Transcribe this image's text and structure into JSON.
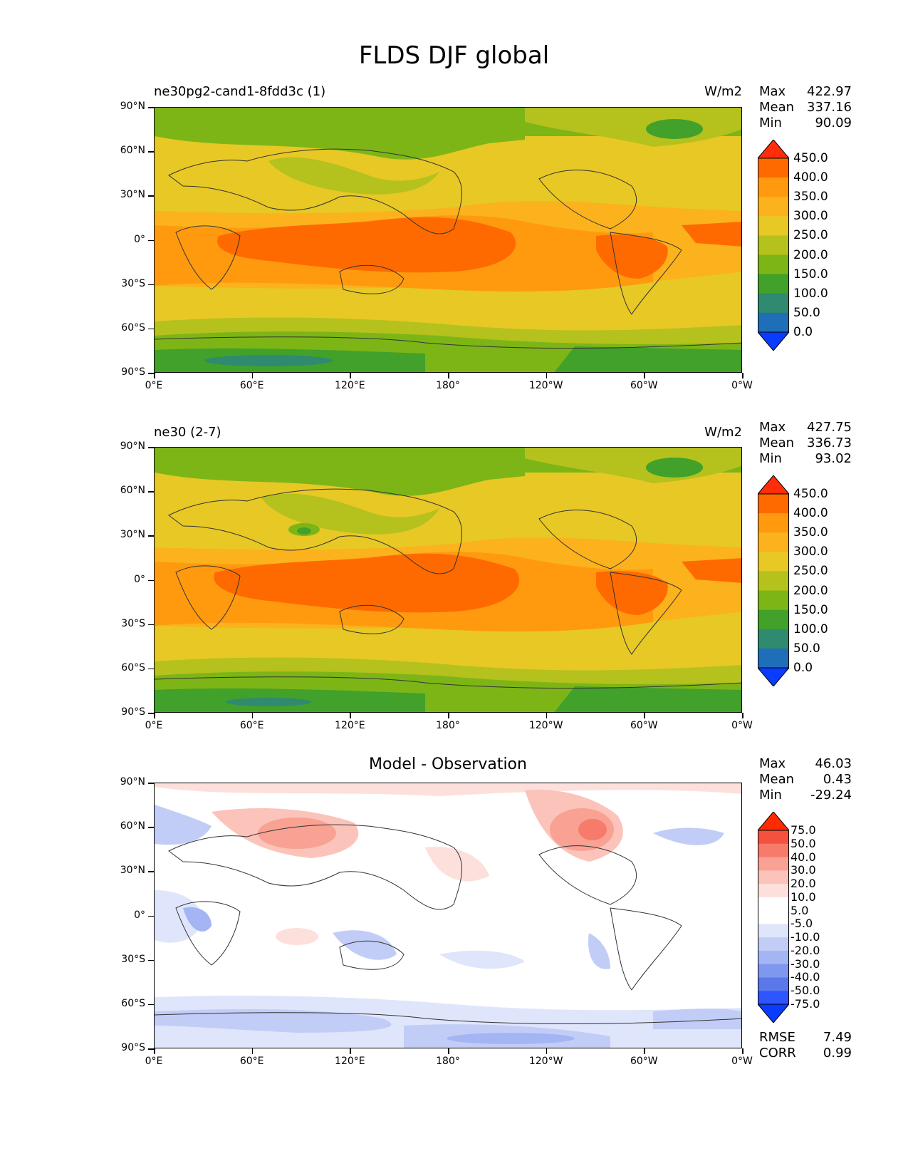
{
  "figure": {
    "title": "FLDS DJF global"
  },
  "axes": {
    "y_labels": [
      "90°N",
      "60°N",
      "30°N",
      "0°",
      "30°S",
      "60°S",
      "90°S"
    ],
    "x_labels": [
      "0°E",
      "60°E",
      "120°E",
      "180°",
      "120°W",
      "60°W",
      "0°W"
    ]
  },
  "panels": [
    {
      "name": "test",
      "left_title": "ne30pg2-cand1-8fdd3c (1)",
      "right_title": "W/m2",
      "stats": {
        "max_label": "Max",
        "max": "422.97",
        "mean_label": "Mean",
        "mean": "337.16",
        "min_label": "Min",
        "min": "90.09"
      },
      "colorbar_labels": [
        "450.0",
        "400.0",
        "350.0",
        "300.0",
        "250.0",
        "200.0",
        "150.0",
        "100.0",
        "50.0",
        "0.0"
      ]
    },
    {
      "name": "reference",
      "left_title": "ne30 (2-7)",
      "right_title": "W/m2",
      "stats": {
        "max_label": "Max",
        "max": "427.75",
        "mean_label": "Mean",
        "mean": "336.73",
        "min_label": "Min",
        "min": "93.02"
      },
      "colorbar_labels": [
        "450.0",
        "400.0",
        "350.0",
        "300.0",
        "250.0",
        "200.0",
        "150.0",
        "100.0",
        "50.0",
        "0.0"
      ]
    },
    {
      "name": "difference",
      "center_title": "Model - Observation",
      "stats": {
        "max_label": "Max",
        "max": "46.03",
        "mean_label": "Mean",
        "mean": "0.43",
        "min_label": "Min",
        "min": "-29.24"
      },
      "colorbar_labels": [
        "75.0",
        "50.0",
        "40.0",
        "30.0",
        "20.0",
        "10.0",
        "5.0",
        "-5.0",
        "-10.0",
        "-20.0",
        "-30.0",
        "-40.0",
        "-50.0",
        "-75.0"
      ],
      "rmse_label": "RMSE",
      "rmse": "7.49",
      "corr_label": "CORR",
      "corr": "0.99"
    }
  ],
  "colors": {
    "field_levels": [
      "#ff2d0a",
      "#ff6a00",
      "#ff9a0e",
      "#fbb21c",
      "#e7c825",
      "#b5c11d",
      "#7db517",
      "#41a12a",
      "#2f8a6f",
      "#1e6fb8",
      "#0a3cff"
    ],
    "diff_levels": [
      "#ff2a00",
      "#f5513f",
      "#f77b6b",
      "#f9a193",
      "#fbc3b9",
      "#fde0db",
      "#ffffff",
      "#ffffff",
      "#dfe5fb",
      "#c2cdf7",
      "#a4b5f3",
      "#8097ef",
      "#5a78ea",
      "#2f55ff",
      "#0a3cff"
    ]
  }
}
